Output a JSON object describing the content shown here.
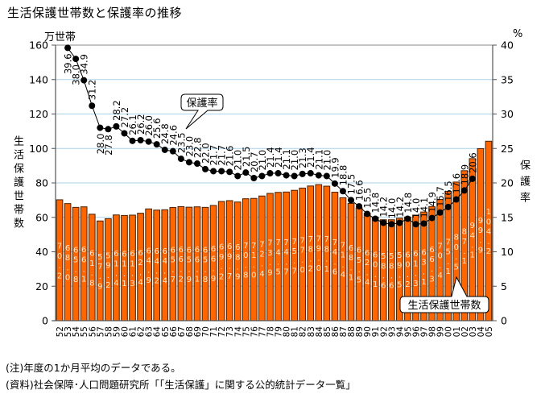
{
  "title": "生活保護世帯数と保護率の推移",
  "notes": [
    "(注)年度の1か月平均のデータである。",
    "(資料)社会保障･人口問題研究所「「生活保護」に関する公的統計データ一覧」"
  ],
  "chart_data": {
    "type": "bar",
    "title": "生活保護世帯数と保護率の推移",
    "xlabel": "",
    "ylabel": "生活保護世帯数",
    "y_unit": "万世帯",
    "ylim": [
      0,
      160
    ],
    "yticks": [
      0,
      20,
      40,
      60,
      80,
      100,
      120,
      140,
      160
    ],
    "y2label": "保護率",
    "y2_unit": "%",
    "y2lim": [
      0,
      40
    ],
    "y2ticks": [
      0,
      5,
      10,
      15,
      20,
      25,
      30,
      35,
      40
    ],
    "grid": true,
    "legend": "none (callout annotations)",
    "categories": [
      "52",
      "53",
      "54",
      "55",
      "56",
      "57",
      "58",
      "59",
      "60",
      "61",
      "62",
      "63",
      "64",
      "65",
      "66",
      "67",
      "68",
      "69",
      "70",
      "71",
      "72",
      "73",
      "74",
      "75",
      "76",
      "77",
      "78",
      "79",
      "80",
      "81",
      "82",
      "83",
      "84",
      "85",
      "86",
      "87",
      "88",
      "89",
      "90",
      "91",
      "92",
      "93",
      "94",
      "95",
      "96",
      "97",
      "98",
      "99",
      "00",
      "01",
      "02",
      "03",
      "04",
      "05"
    ],
    "series": [
      {
        "name": "生活保護世帯数",
        "type": "bar",
        "axis": "left",
        "unit": "万世帯",
        "color": "#ff6600",
        "values": [
          70.2,
          68.0,
          65.8,
          66.1,
          61.8,
          57.9,
          59.2,
          61.4,
          61.1,
          61.3,
          62.4,
          64.9,
          64.2,
          64.4,
          65.7,
          66.2,
          65.9,
          66.1,
          65.8,
          66.9,
          69.2,
          69.7,
          68.9,
          70.8,
          71.0,
          72.4,
          73.9,
          74.5,
          74.7,
          75.7,
          77.0,
          78.2,
          79.0,
          78.1,
          74.6,
          71.4,
          68.1,
          65.5,
          62.4,
          60.1,
          58.6,
          58.6,
          59.5,
          60.2,
          61.3,
          63.1,
          66.3,
          70.4,
          75.1,
          80.5,
          87.1,
          94.1,
          99.9,
          104.2
        ]
      },
      {
        "name": "保護率",
        "type": "line",
        "axis": "right",
        "unit": "%",
        "color": "#000000",
        "values": [
          null,
          39.6,
          38.0,
          34.9,
          31.2,
          28.0,
          27.8,
          28.2,
          27.2,
          26.1,
          26.2,
          26.0,
          25.6,
          24.8,
          24.6,
          23.5,
          23.0,
          22.8,
          22.0,
          21.7,
          21.7,
          21.6,
          21.0,
          21.5,
          20.7,
          21.0,
          21.4,
          21.4,
          21.1,
          21.0,
          21.3,
          21.4,
          21.1,
          21.0,
          19.9,
          18.8,
          17.5,
          16.6,
          15.5,
          14.8,
          14.2,
          14.0,
          14.2,
          14.8,
          14.0,
          14.1,
          14.9,
          15.7,
          16.5,
          17.6,
          18.9,
          20.6,
          null,
          null
        ]
      }
    ],
    "callouts": [
      {
        "text": "保護率",
        "target_series": "保護率"
      },
      {
        "text": "生活保護世帯数",
        "target_series": "生活保護世帯数"
      }
    ],
    "colors": {
      "bar_fill": "#ff6600",
      "bar_edge": "#4a2000",
      "bar_label": "#ffe4c8",
      "grid": "#a9d3ea",
      "line": "#000000"
    }
  }
}
